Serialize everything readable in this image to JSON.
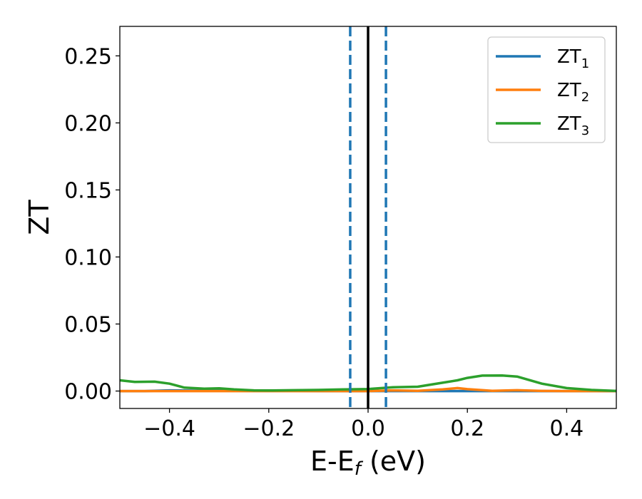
{
  "chart_data": {
    "type": "line",
    "xlabel": "E-E",
    "xlabel_subscript": "f",
    "xlabel_unit": " (eV)",
    "ylabel": "ZT",
    "xlim": [
      -0.5,
      0.5
    ],
    "ylim": [
      -0.013,
      0.272
    ],
    "xticks": [
      -0.4,
      -0.2,
      0.0,
      0.2,
      0.4
    ],
    "xtick_labels": [
      "−0.4",
      "−0.2",
      "0.0",
      "0.2",
      "0.4"
    ],
    "yticks": [
      0.0,
      0.05,
      0.1,
      0.15,
      0.2,
      0.25
    ],
    "ytick_labels": [
      "0.00",
      "0.05",
      "0.10",
      "0.15",
      "0.20",
      "0.25"
    ],
    "grid": false,
    "legend_position": "top-right",
    "series": [
      {
        "name": "ZT",
        "subscript": "1",
        "color": "#1f77b4",
        "x": [
          -0.5,
          -0.45,
          -0.4,
          -0.35,
          -0.3,
          -0.25,
          -0.2,
          -0.15,
          -0.1,
          -0.05,
          0.0,
          0.05,
          0.1,
          0.15,
          0.2,
          0.25,
          0.3,
          0.35,
          0.4,
          0.45,
          0.5
        ],
        "y": [
          0.0,
          0.0,
          0.0005,
          0.0003,
          0.0002,
          0.0001,
          0.0001,
          0.0001,
          0.0,
          0.0,
          0.0,
          0.0,
          0.0,
          0.0,
          0.0,
          0.0,
          0.0,
          0.0,
          0.0,
          0.0,
          0.0
        ]
      },
      {
        "name": "ZT",
        "subscript": "2",
        "color": "#ff7f0e",
        "x": [
          -0.5,
          -0.45,
          -0.4,
          -0.35,
          -0.3,
          -0.25,
          -0.2,
          -0.15,
          -0.1,
          -0.05,
          0.0,
          0.05,
          0.1,
          0.15,
          0.18,
          0.2,
          0.25,
          0.3,
          0.35,
          0.4,
          0.45,
          0.5
        ],
        "y": [
          0.0,
          0.0,
          0.0,
          0.0,
          0.0,
          0.0,
          0.0,
          0.0,
          0.0,
          0.0,
          0.0,
          0.0005,
          0.0002,
          0.0012,
          0.0022,
          0.0014,
          0.0002,
          0.0006,
          0.0001,
          0.0,
          0.0,
          0.0
        ]
      },
      {
        "name": "ZT",
        "subscript": "3",
        "color": "#2ca02c",
        "x": [
          -0.5,
          -0.47,
          -0.43,
          -0.4,
          -0.37,
          -0.33,
          -0.3,
          -0.27,
          -0.23,
          -0.2,
          -0.15,
          -0.1,
          -0.05,
          0.0,
          0.05,
          0.1,
          0.15,
          0.18,
          0.2,
          0.23,
          0.27,
          0.3,
          0.35,
          0.4,
          0.45,
          0.5
        ],
        "y": [
          0.008,
          0.0068,
          0.007,
          0.0055,
          0.0025,
          0.0018,
          0.002,
          0.0012,
          0.0005,
          0.0004,
          0.0006,
          0.0008,
          0.0012,
          0.0015,
          0.0028,
          0.0032,
          0.0062,
          0.008,
          0.0098,
          0.0115,
          0.0116,
          0.0108,
          0.0055,
          0.0022,
          0.0008,
          0.0001
        ]
      }
    ],
    "vlines": [
      {
        "x": -0.036,
        "style": "dashed",
        "color": "#1f77b4"
      },
      {
        "x": 0.036,
        "style": "dashed",
        "color": "#1f77b4"
      },
      {
        "x": 0.0,
        "style": "solid",
        "color": "#000000"
      }
    ]
  }
}
